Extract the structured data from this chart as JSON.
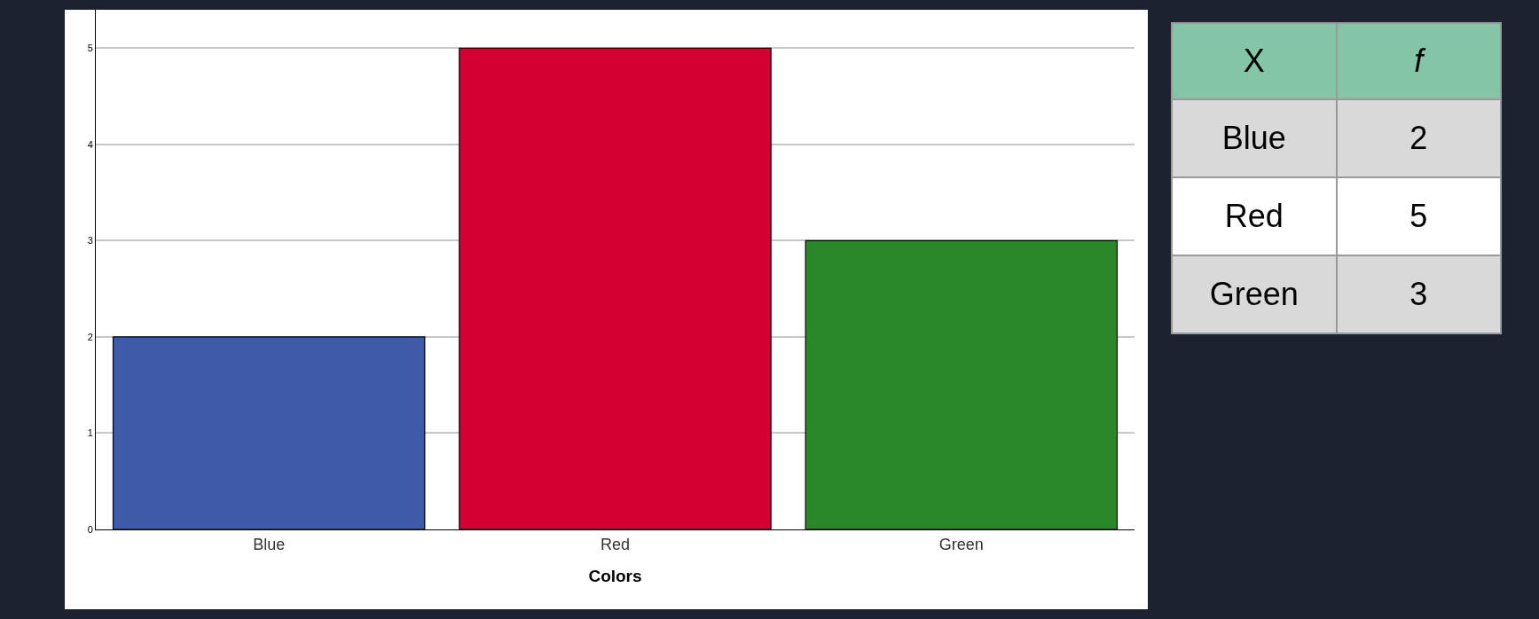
{
  "chart_data": [
    {
      "type": "bar",
      "xlabel": "Colors",
      "categories": [
        "Blue",
        "Red",
        "Green"
      ],
      "values": [
        2,
        5,
        3
      ],
      "colors": [
        "#3f5aa8",
        "#d50032",
        "#2a8828"
      ],
      "ylim": [
        0,
        5.4
      ],
      "yticks": [
        0,
        1,
        2,
        3,
        4,
        5
      ],
      "grid": "y"
    },
    {
      "type": "other",
      "annotations": [
        "X",
        "f",
        "Blue",
        "2",
        "Red",
        "5",
        "Green",
        "3"
      ]
    }
  ]
}
